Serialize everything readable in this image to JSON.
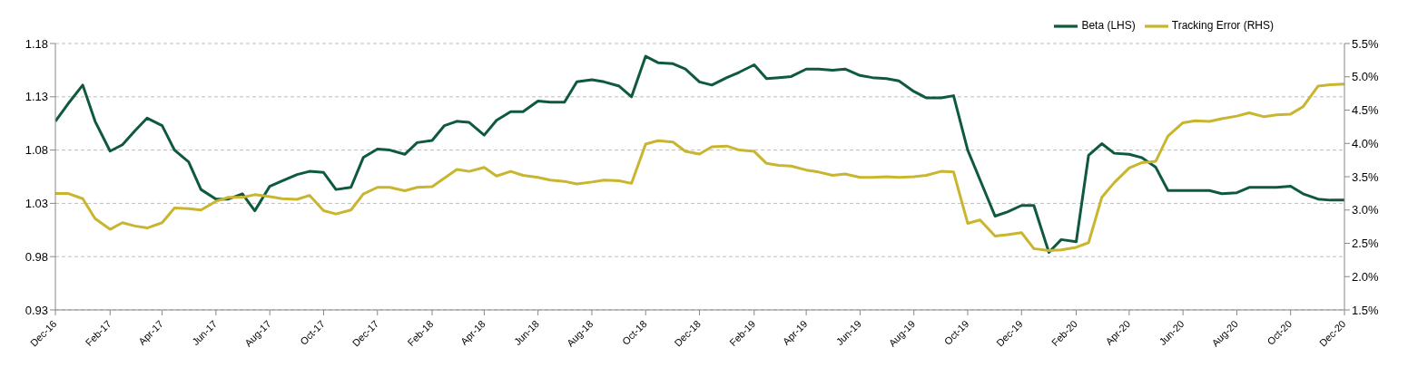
{
  "chart_data": {
    "type": "line",
    "x": [
      "2016-12-01",
      "2016-12-15",
      "2017-01-01",
      "2017-01-15",
      "2017-02-01",
      "2017-02-15",
      "2017-03-01",
      "2017-03-15",
      "2017-04-01",
      "2017-04-15",
      "2017-05-01",
      "2017-05-15",
      "2017-06-01",
      "2017-06-15",
      "2017-07-01",
      "2017-07-15",
      "2017-08-01",
      "2017-08-15",
      "2017-09-01",
      "2017-09-15",
      "2017-10-01",
      "2017-10-15",
      "2017-11-01",
      "2017-11-15",
      "2017-12-01",
      "2017-12-15",
      "2018-01-01",
      "2018-01-15",
      "2018-02-01",
      "2018-02-15",
      "2018-03-01",
      "2018-03-15",
      "2018-04-01",
      "2018-04-15",
      "2018-05-01",
      "2018-05-15",
      "2018-06-01",
      "2018-06-15",
      "2018-07-01",
      "2018-07-15",
      "2018-08-01",
      "2018-08-15",
      "2018-09-01",
      "2018-09-15",
      "2018-10-01",
      "2018-10-15",
      "2018-11-01",
      "2018-11-15",
      "2018-12-01",
      "2018-12-15",
      "2019-01-01",
      "2019-01-15",
      "2019-02-01",
      "2019-02-15",
      "2019-03-01",
      "2019-03-15",
      "2019-04-01",
      "2019-04-15",
      "2019-05-01",
      "2019-05-15",
      "2019-06-01",
      "2019-06-15",
      "2019-07-01",
      "2019-07-15",
      "2019-08-01",
      "2019-08-15",
      "2019-09-01",
      "2019-09-15",
      "2019-10-01",
      "2019-10-15",
      "2019-11-01",
      "2019-11-15",
      "2019-12-01",
      "2019-12-15",
      "2020-01-01",
      "2020-01-15",
      "2020-02-01",
      "2020-02-15",
      "2020-03-01",
      "2020-03-15",
      "2020-04-01",
      "2020-04-15",
      "2020-05-01",
      "2020-05-15",
      "2020-06-01",
      "2020-06-15",
      "2020-07-01",
      "2020-07-15",
      "2020-08-01",
      "2020-08-15",
      "2020-09-01",
      "2020-09-15",
      "2020-10-01",
      "2020-10-15",
      "2020-11-01",
      "2020-11-15",
      "2020-12-01"
    ],
    "series": [
      {
        "name": "Beta (LHS)",
        "color": "#0f5a3c",
        "values": [
          1.107,
          1.123,
          1.141,
          1.107,
          1.079,
          1.085,
          1.098,
          1.11,
          1.103,
          1.08,
          1.069,
          1.043,
          1.034,
          1.034,
          1.039,
          1.023,
          1.046,
          1.051,
          1.057,
          1.06,
          1.059,
          1.043,
          1.045,
          1.073,
          1.081,
          1.08,
          1.076,
          1.087,
          1.089,
          1.103,
          1.107,
          1.106,
          1.094,
          1.108,
          1.116,
          1.116,
          1.126,
          1.125,
          1.125,
          1.144,
          1.146,
          1.144,
          1.14,
          1.13,
          1.168,
          1.162,
          1.161,
          1.156,
          1.144,
          1.141,
          1.148,
          1.153,
          1.16,
          1.147,
          1.148,
          1.149,
          1.156,
          1.156,
          1.155,
          1.156,
          1.15,
          1.148,
          1.147,
          1.145,
          1.135,
          1.129,
          1.129,
          1.131,
          1.08,
          1.052,
          1.018,
          1.022,
          1.028,
          1.028,
          0.984,
          0.996,
          0.994,
          1.075,
          1.086,
          1.077,
          1.076,
          1.073,
          1.064,
          1.042,
          1.042,
          1.042,
          1.042,
          1.039,
          1.04,
          1.045,
          1.045,
          1.045,
          1.046,
          1.039,
          1.034,
          1.033,
          1.033
        ]
      },
      {
        "name": "Tracking Error (RHS)",
        "color": "#c9b530",
        "axis": "y2",
        "values": [
          3.25,
          3.25,
          3.17,
          2.87,
          2.71,
          2.81,
          2.76,
          2.73,
          2.81,
          3.03,
          3.02,
          3.0,
          3.13,
          3.19,
          3.19,
          3.23,
          3.2,
          3.17,
          3.16,
          3.22,
          2.99,
          2.94,
          3.0,
          3.24,
          3.34,
          3.34,
          3.29,
          3.34,
          3.35,
          3.48,
          3.61,
          3.58,
          3.64,
          3.51,
          3.58,
          3.52,
          3.49,
          3.45,
          3.43,
          3.39,
          3.42,
          3.45,
          3.44,
          3.4,
          3.99,
          4.04,
          4.02,
          3.88,
          3.84,
          3.95,
          3.96,
          3.9,
          3.88,
          3.7,
          3.67,
          3.66,
          3.6,
          3.57,
          3.52,
          3.54,
          3.49,
          3.49,
          3.5,
          3.49,
          3.5,
          3.52,
          3.58,
          3.57,
          2.8,
          2.85,
          2.61,
          2.63,
          2.66,
          2.42,
          2.39,
          2.4,
          2.44,
          2.51,
          3.19,
          3.41,
          3.63,
          3.71,
          3.73,
          4.11,
          4.31,
          4.34,
          4.33,
          4.37,
          4.41,
          4.46,
          4.4,
          4.43,
          4.44,
          4.55,
          4.86,
          4.88,
          4.89
        ]
      }
    ],
    "xlim": [
      "2016-12-01",
      "2020-12-01"
    ],
    "xticks": [
      {
        "value": "2016-12-01",
        "label": "Dec-16"
      },
      {
        "value": "2017-02-01",
        "label": "Feb-17"
      },
      {
        "value": "2017-04-01",
        "label": "Apr-17"
      },
      {
        "value": "2017-06-01",
        "label": "Jun-17"
      },
      {
        "value": "2017-08-01",
        "label": "Aug-17"
      },
      {
        "value": "2017-10-01",
        "label": "Oct-17"
      },
      {
        "value": "2017-12-01",
        "label": "Dec-17"
      },
      {
        "value": "2018-02-01",
        "label": "Feb-18"
      },
      {
        "value": "2018-04-01",
        "label": "Apr-18"
      },
      {
        "value": "2018-06-01",
        "label": "Jun-18"
      },
      {
        "value": "2018-08-01",
        "label": "Aug-18"
      },
      {
        "value": "2018-10-01",
        "label": "Oct-18"
      },
      {
        "value": "2018-12-01",
        "label": "Dec-18"
      },
      {
        "value": "2019-02-01",
        "label": "Feb-19"
      },
      {
        "value": "2019-04-01",
        "label": "Apr-19"
      },
      {
        "value": "2019-06-01",
        "label": "Jun-19"
      },
      {
        "value": "2019-08-01",
        "label": "Aug-19"
      },
      {
        "value": "2019-10-01",
        "label": "Oct-19"
      },
      {
        "value": "2019-12-01",
        "label": "Dec-19"
      },
      {
        "value": "2020-02-01",
        "label": "Feb-20"
      },
      {
        "value": "2020-04-01",
        "label": "Apr-20"
      },
      {
        "value": "2020-06-01",
        "label": "Jun-20"
      },
      {
        "value": "2020-08-01",
        "label": "Aug-20"
      },
      {
        "value": "2020-10-01",
        "label": "Oct-20"
      },
      {
        "value": "2020-12-01",
        "label": "Dec-20"
      }
    ],
    "ylim": [
      0.93,
      1.18
    ],
    "yticks": [
      0.93,
      0.98,
      1.03,
      1.08,
      1.13,
      1.18
    ],
    "y2lim": [
      1.5,
      5.5
    ],
    "y2ticks": [
      {
        "value": 1.5,
        "label": "1.5%"
      },
      {
        "value": 2.0,
        "label": "2.0%"
      },
      {
        "value": 2.5,
        "label": "2.5%"
      },
      {
        "value": 3.0,
        "label": "3.0%"
      },
      {
        "value": 3.5,
        "label": "3.5%"
      },
      {
        "value": 4.0,
        "label": "4.0%"
      },
      {
        "value": 4.5,
        "label": "4.5%"
      },
      {
        "value": 5.0,
        "label": "5.0%"
      },
      {
        "value": 5.5,
        "label": "5.5%"
      }
    ],
    "grid": "y",
    "legend": "top right"
  }
}
